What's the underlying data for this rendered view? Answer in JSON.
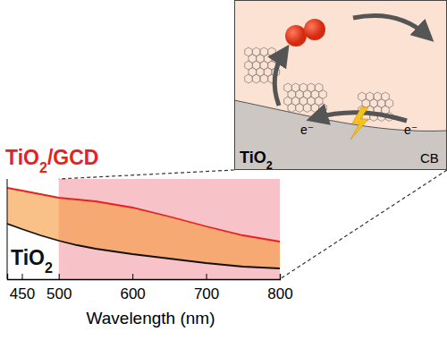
{
  "chart_data": {
    "type": "line",
    "x_label": "Wavelength (nm)",
    "x": [
      430,
      450,
      475,
      500,
      525,
      550,
      600,
      650,
      700,
      750,
      800
    ],
    "series": [
      {
        "name": "TiO2/GCD",
        "color": "#e8201e",
        "values": [
          1.02,
          0.99,
          0.95,
          0.91,
          0.89,
          0.87,
          0.8,
          0.7,
          0.59,
          0.49,
          0.42
        ]
      },
      {
        "name": "TiO2",
        "color": "#111111",
        "values": [
          0.62,
          0.56,
          0.49,
          0.43,
          0.38,
          0.34,
          0.28,
          0.23,
          0.18,
          0.14,
          0.12
        ]
      }
    ],
    "xlim": [
      430,
      800
    ],
    "xticks": [
      450,
      500,
      600,
      700,
      800
    ],
    "ylim": [
      0,
      1.12
    ],
    "tick_labels": "x",
    "highlight_range": [
      500,
      800
    ],
    "annotations": [
      "TiO2",
      "CB",
      "e⁻",
      "e⁻"
    ]
  }
}
